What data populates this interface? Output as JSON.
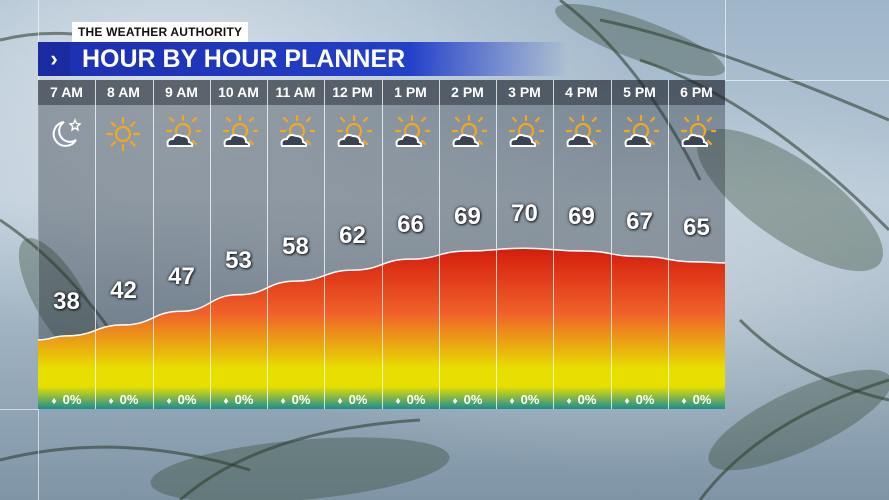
{
  "brand": "THE WEATHER AUTHORITY",
  "title": {
    "chevron": "›",
    "text": "HOUR BY HOUR PLANNER"
  },
  "hours": [
    {
      "time": "7 AM",
      "icon": "moon-stars-icon",
      "temp": 38,
      "precip": "0%"
    },
    {
      "time": "8 AM",
      "icon": "sun-icon",
      "temp": 42,
      "precip": "0%"
    },
    {
      "time": "9 AM",
      "icon": "partly-cloudy-icon",
      "temp": 47,
      "precip": "0%"
    },
    {
      "time": "10 AM",
      "icon": "partly-cloudy-icon",
      "temp": 53,
      "precip": "0%"
    },
    {
      "time": "11 AM",
      "icon": "partly-cloudy-icon",
      "temp": 58,
      "precip": "0%"
    },
    {
      "time": "12 PM",
      "icon": "partly-cloudy-icon",
      "temp": 62,
      "precip": "0%"
    },
    {
      "time": "1 PM",
      "icon": "partly-cloudy-icon",
      "temp": 66,
      "precip": "0%"
    },
    {
      "time": "2 PM",
      "icon": "partly-cloudy-icon",
      "temp": 69,
      "precip": "0%"
    },
    {
      "time": "3 PM",
      "icon": "partly-cloudy-icon",
      "temp": 70,
      "precip": "0%"
    },
    {
      "time": "4 PM",
      "icon": "partly-cloudy-icon",
      "temp": 69,
      "precip": "0%"
    },
    {
      "time": "5 PM",
      "icon": "partly-cloudy-icon",
      "temp": 67,
      "precip": "0%"
    },
    {
      "time": "6 PM",
      "icon": "partly-cloudy-icon",
      "temp": 65,
      "precip": "0%"
    }
  ],
  "colors": {
    "title_bar": "#2340c8",
    "sun": "#f2a81d",
    "curve_top": "#d41c0c",
    "curve_mid": "#f0602a",
    "curve_yellow": "#e6df00",
    "curve_bottom": "#1b8c92"
  }
}
